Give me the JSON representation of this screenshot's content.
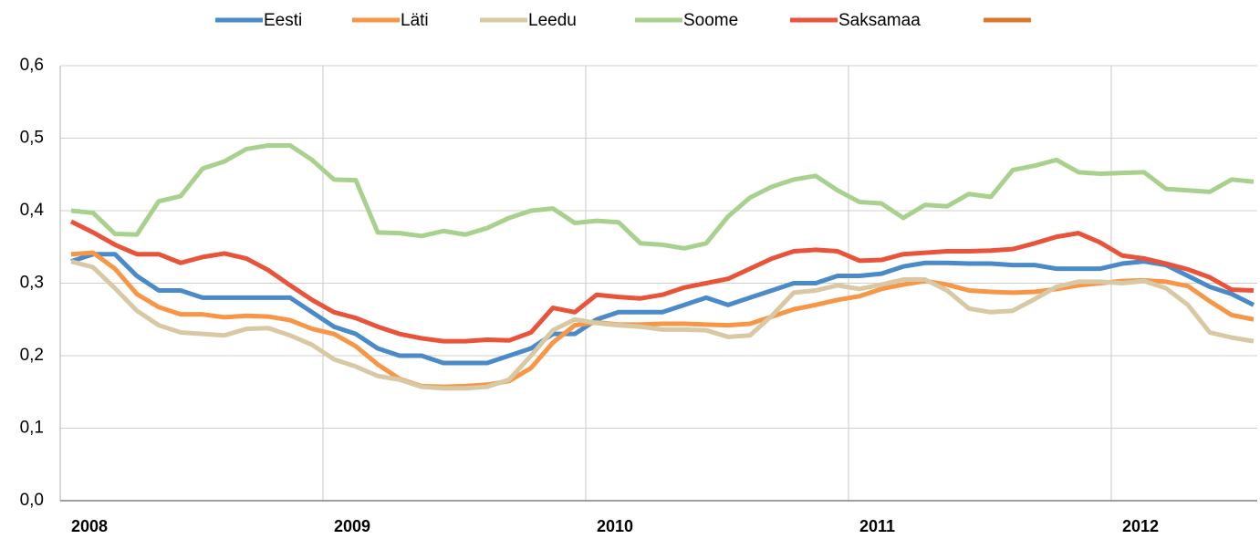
{
  "chart_data": {
    "type": "line",
    "categories": [
      "2008",
      null,
      null,
      null,
      null,
      null,
      null,
      null,
      null,
      null,
      null,
      null,
      "2009",
      null,
      null,
      null,
      null,
      null,
      null,
      null,
      null,
      null,
      null,
      null,
      "2010",
      null,
      null,
      null,
      null,
      null,
      null,
      null,
      null,
      null,
      null,
      null,
      "2011",
      null,
      null,
      null,
      null,
      null,
      null,
      null,
      null,
      null,
      null,
      null,
      "2012",
      null,
      null,
      null,
      null,
      null,
      null
    ],
    "series": [
      {
        "name": "Eesti",
        "color": "#4a8ac9",
        "values": [
          0.33,
          0.34,
          0.34,
          0.31,
          0.29,
          0.29,
          0.28,
          0.28,
          0.28,
          0.28,
          0.28,
          0.26,
          0.24,
          0.23,
          0.21,
          0.2,
          0.2,
          0.19,
          0.19,
          0.19,
          0.2,
          0.21,
          0.23,
          0.23,
          0.25,
          0.26,
          0.26,
          0.26,
          0.27,
          0.28,
          0.27,
          0.28,
          0.29,
          0.3,
          0.3,
          0.31,
          0.31,
          0.313,
          0.323,
          0.328,
          0.328,
          0.327,
          0.327,
          0.325,
          0.325,
          0.32,
          0.32,
          0.32,
          0.327,
          0.33,
          0.325,
          0.31,
          0.295,
          0.285,
          0.27
        ]
      },
      {
        "name": "Läti",
        "color": "#f79646",
        "values": [
          0.34,
          0.342,
          0.32,
          0.285,
          0.267,
          0.257,
          0.257,
          0.253,
          0.255,
          0.254,
          0.249,
          0.237,
          0.23,
          0.213,
          0.188,
          0.168,
          0.158,
          0.157,
          0.158,
          0.16,
          0.165,
          0.183,
          0.218,
          0.242,
          0.246,
          0.243,
          0.243,
          0.244,
          0.244,
          0.243,
          0.242,
          0.244,
          0.254,
          0.264,
          0.27,
          0.277,
          0.282,
          0.292,
          0.298,
          0.303,
          0.298,
          0.29,
          0.288,
          0.287,
          0.288,
          0.292,
          0.297,
          0.3,
          0.303,
          0.304,
          0.302,
          0.296,
          0.275,
          0.256,
          0.25
        ]
      },
      {
        "name": "Leedu",
        "color": "#d9c8a4",
        "values": [
          0.33,
          0.322,
          0.293,
          0.262,
          0.242,
          0.232,
          0.23,
          0.228,
          0.237,
          0.238,
          0.228,
          0.215,
          0.195,
          0.185,
          0.172,
          0.167,
          0.157,
          0.155,
          0.155,
          0.157,
          0.167,
          0.2,
          0.235,
          0.25,
          0.245,
          0.242,
          0.24,
          0.236,
          0.236,
          0.235,
          0.226,
          0.228,
          0.255,
          0.287,
          0.29,
          0.297,
          0.292,
          0.298,
          0.305,
          0.305,
          0.29,
          0.265,
          0.26,
          0.262,
          0.278,
          0.295,
          0.302,
          0.302,
          0.3,
          0.303,
          0.293,
          0.27,
          0.232,
          0.225,
          0.22
        ]
      },
      {
        "name": "Soome",
        "color": "#a9d18e",
        "values": [
          0.4,
          0.397,
          0.368,
          0.367,
          0.413,
          0.42,
          0.458,
          0.468,
          0.485,
          0.49,
          0.49,
          0.47,
          0.443,
          0.442,
          0.37,
          0.369,
          0.365,
          0.372,
          0.367,
          0.376,
          0.39,
          0.4,
          0.403,
          0.383,
          0.386,
          0.384,
          0.355,
          0.353,
          0.348,
          0.355,
          0.392,
          0.418,
          0.433,
          0.443,
          0.448,
          0.428,
          0.412,
          0.41,
          0.39,
          0.408,
          0.406,
          0.423,
          0.419,
          0.456,
          0.462,
          0.47,
          0.453,
          0.451,
          0.452,
          0.453,
          0.43,
          0.428,
          0.426,
          0.443,
          0.44
        ]
      },
      {
        "name": "Saksamaa",
        "color": "#e8533a",
        "values": [
          0.385,
          0.37,
          0.353,
          0.34,
          0.34,
          0.328,
          0.336,
          0.341,
          0.334,
          0.318,
          0.297,
          0.277,
          0.26,
          0.252,
          0.24,
          0.23,
          0.224,
          0.22,
          0.22,
          0.222,
          0.221,
          0.232,
          0.266,
          0.26,
          0.284,
          0.281,
          0.279,
          0.284,
          0.294,
          0.3,
          0.306,
          0.32,
          0.334,
          0.344,
          0.346,
          0.344,
          0.331,
          0.332,
          0.34,
          0.342,
          0.344,
          0.344,
          0.345,
          0.347,
          0.355,
          0.364,
          0.369,
          0.356,
          0.338,
          0.334,
          0.327,
          0.319,
          0.308,
          0.291,
          0.29
        ]
      },
      {
        "color": "#d9782d",
        "values": [
          null,
          null,
          null,
          null,
          null,
          null,
          null,
          null,
          null,
          null,
          null,
          null,
          null,
          null,
          null,
          null,
          null,
          null,
          null,
          null,
          null,
          null,
          null,
          null,
          null,
          null,
          null,
          null,
          null,
          null,
          null,
          null,
          null,
          null,
          null,
          null,
          null,
          null,
          null,
          null,
          null,
          null,
          null,
          null,
          null,
          null,
          null,
          null,
          null,
          null,
          null,
          null,
          null,
          null,
          null
        ]
      }
    ],
    "ylim": [
      0,
      0.6
    ],
    "yticks": [
      {
        "value": 0,
        "label": "0,0"
      },
      {
        "value": 0.1,
        "label": "0,1"
      },
      {
        "value": 0.2,
        "label": "0,2"
      },
      {
        "value": 0.3,
        "label": "0,3"
      },
      {
        "value": 0.4,
        "label": "0,4"
      },
      {
        "value": 0.5,
        "label": "0,5"
      },
      {
        "value": 0.6,
        "label": "0,6"
      }
    ],
    "grid": true,
    "legend": "top"
  }
}
